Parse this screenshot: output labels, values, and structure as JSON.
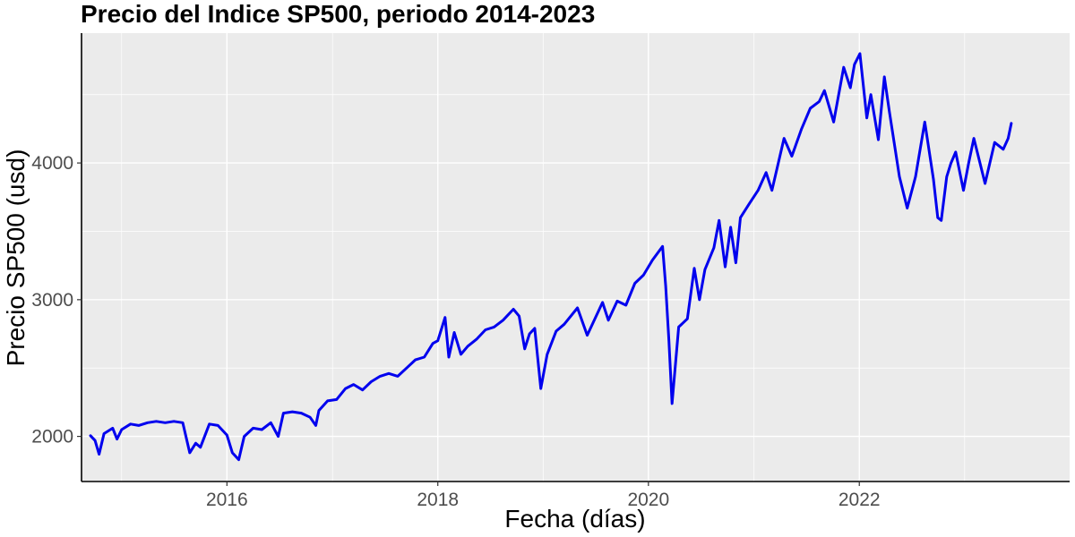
{
  "chart_data": {
    "type": "line",
    "title": "Precio del Indice SP500, periodo 2014-2023",
    "xlabel": "Fecha (días)",
    "ylabel": "Precio SP500 (usd)",
    "x_ticks": [
      "2016",
      "2018",
      "2020",
      "2022"
    ],
    "y_ticks": [
      "2000",
      "3000",
      "4000"
    ],
    "xlim": [
      "2014-08-15",
      "2023-12-31"
    ],
    "ylim": [
      1670,
      4950
    ],
    "grid": true,
    "legend": "none",
    "colors": {
      "line": "#0000ee",
      "panel": "#ebebeb",
      "grid": "#ffffff"
    },
    "series": [
      {
        "x": [
          "2014-09-15",
          "2014-10-01",
          "2014-10-15",
          "2014-11-01",
          "2014-12-01",
          "2014-12-16",
          "2015-01-01",
          "2015-02-01",
          "2015-03-01",
          "2015-04-01",
          "2015-05-01",
          "2015-06-01",
          "2015-07-01",
          "2015-08-01",
          "2015-08-25",
          "2015-09-15",
          "2015-10-01",
          "2015-11-01",
          "2015-12-01",
          "2016-01-01",
          "2016-01-20",
          "2016-02-11",
          "2016-03-01",
          "2016-04-01",
          "2016-05-01",
          "2016-06-01",
          "2016-06-27",
          "2016-07-15",
          "2016-08-15",
          "2016-09-15",
          "2016-10-15",
          "2016-11-04",
          "2016-11-15",
          "2016-12-15",
          "2017-01-15",
          "2017-02-15",
          "2017-03-15",
          "2017-04-15",
          "2017-05-15",
          "2017-06-15",
          "2017-07-15",
          "2017-08-15",
          "2017-09-15",
          "2017-10-15",
          "2017-11-15",
          "2017-12-15",
          "2018-01-01",
          "2018-01-26",
          "2018-02-08",
          "2018-02-27",
          "2018-03-22",
          "2018-04-15",
          "2018-05-15",
          "2018-06-15",
          "2018-07-15",
          "2018-08-15",
          "2018-09-20",
          "2018-10-10",
          "2018-10-29",
          "2018-11-15",
          "2018-12-03",
          "2018-12-24",
          "2019-01-15",
          "2019-02-15",
          "2019-03-15",
          "2019-04-30",
          "2019-06-03",
          "2019-07-26",
          "2019-08-15",
          "2019-09-15",
          "2019-10-15",
          "2019-11-15",
          "2019-12-15",
          "2020-01-15",
          "2020-02-19",
          "2020-03-01",
          "2020-03-12",
          "2020-03-23",
          "2020-04-15",
          "2020-05-15",
          "2020-06-08",
          "2020-06-26",
          "2020-07-15",
          "2020-08-15",
          "2020-09-02",
          "2020-09-23",
          "2020-10-12",
          "2020-10-30",
          "2020-11-15",
          "2020-12-15",
          "2021-01-15",
          "2021-02-12",
          "2021-03-04",
          "2021-04-15",
          "2021-05-12",
          "2021-06-15",
          "2021-07-15",
          "2021-08-15",
          "2021-09-02",
          "2021-10-04",
          "2021-11-08",
          "2021-12-01",
          "2021-12-15",
          "2022-01-03",
          "2022-01-27",
          "2022-02-10",
          "2022-03-08",
          "2022-03-29",
          "2022-04-15",
          "2022-05-20",
          "2022-06-16",
          "2022-07-15",
          "2022-08-16",
          "2022-09-15",
          "2022-09-30",
          "2022-10-12",
          "2022-10-31",
          "2022-11-15",
          "2022-12-01",
          "2022-12-28",
          "2023-01-15",
          "2023-02-02",
          "2023-03-13",
          "2023-04-15",
          "2023-05-15",
          "2023-06-01",
          "2023-06-12"
        ],
        "y": [
          2005,
          1970,
          1870,
          2020,
          2060,
          1980,
          2050,
          2090,
          2080,
          2100,
          2110,
          2100,
          2110,
          2100,
          1880,
          1950,
          1920,
          2090,
          2080,
          2010,
          1880,
          1830,
          2000,
          2060,
          2050,
          2100,
          2000,
          2170,
          2180,
          2170,
          2140,
          2080,
          2190,
          2260,
          2270,
          2350,
          2380,
          2340,
          2400,
          2440,
          2460,
          2440,
          2500,
          2560,
          2580,
          2680,
          2700,
          2870,
          2580,
          2760,
          2600,
          2660,
          2710,
          2780,
          2800,
          2850,
          2930,
          2880,
          2640,
          2750,
          2790,
          2350,
          2600,
          2770,
          2820,
          2940,
          2740,
          2980,
          2850,
          2990,
          2960,
          3120,
          3180,
          3290,
          3390,
          3100,
          2700,
          2240,
          2800,
          2860,
          3230,
          3000,
          3220,
          3380,
          3580,
          3240,
          3530,
          3270,
          3600,
          3700,
          3800,
          3930,
          3800,
          4180,
          4050,
          4250,
          4400,
          4450,
          4530,
          4300,
          4700,
          4550,
          4720,
          4800,
          4330,
          4500,
          4170,
          4630,
          4380,
          3900,
          3670,
          3900,
          4300,
          3880,
          3600,
          3580,
          3900,
          4000,
          4080,
          3800,
          4000,
          4180,
          3850,
          4150,
          4100,
          4180,
          4290
        ]
      }
    ]
  }
}
